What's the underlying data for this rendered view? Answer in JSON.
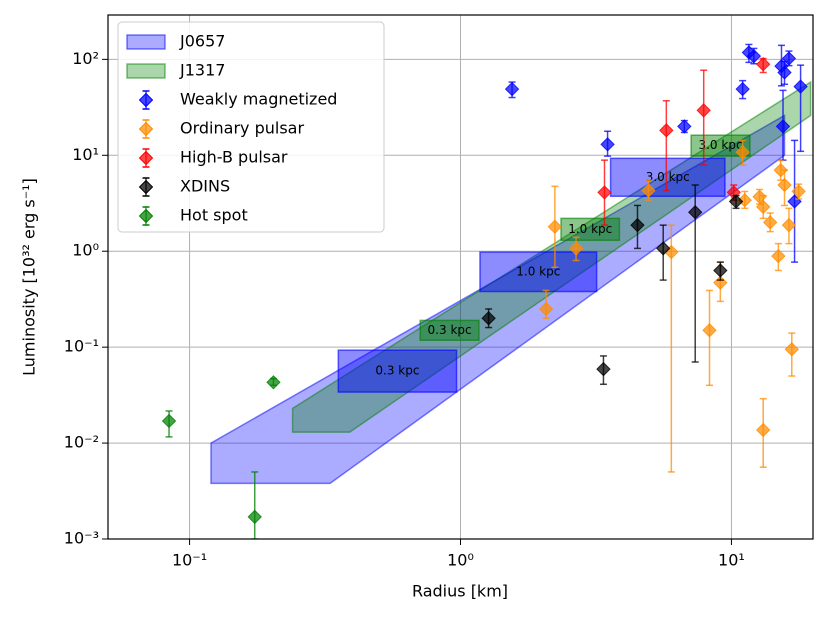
{
  "chart_data": {
    "type": "scatter",
    "xlabel": "Radius [km]",
    "ylabel": "Luminosity [10³² erg s⁻¹]",
    "xscale": "log",
    "yscale": "log",
    "xlim": [
      0.05,
      20
    ],
    "ylim": [
      0.001,
      290
    ],
    "xticks": [
      {
        "value": 0.1,
        "label": "10⁻¹"
      },
      {
        "value": 1,
        "label": "10⁰"
      },
      {
        "value": 10,
        "label": "10¹"
      }
    ],
    "yticks": [
      {
        "value": 0.001,
        "label": "10⁻³"
      },
      {
        "value": 0.01,
        "label": "10⁻²"
      },
      {
        "value": 0.1,
        "label": "10⁻¹"
      },
      {
        "value": 1,
        "label": "10⁰"
      },
      {
        "value": 10,
        "label": "10¹"
      },
      {
        "value": 100,
        "label": "10²"
      }
    ],
    "grid": true,
    "legend": "upper left",
    "regions": [
      {
        "name": "J0657",
        "color": "#0000ff",
        "x": [
          0.12,
          0.12,
          15.7,
          15.7,
          0.33
        ],
        "y": [
          0.0038,
          0.01,
          26,
          10,
          0.0038
        ],
        "boxes": [
          {
            "label": "0.3 kpc",
            "x": [
              0.354,
              0.967
            ],
            "y": [
              0.034,
              0.093
            ]
          },
          {
            "label": "1.0 kpc",
            "x": [
              1.18,
              3.18
            ],
            "y": [
              0.38,
              0.98
            ]
          },
          {
            "label": "3.0 kpc",
            "x": [
              3.58,
              9.46
            ],
            "y": [
              3.74,
              9.3
            ]
          }
        ]
      },
      {
        "name": "J1317",
        "color": "#008000",
        "x": [
          0.24,
          0.24,
          19.6,
          19.6,
          0.39
        ],
        "y": [
          0.013,
          0.023,
          58,
          26,
          0.013
        ],
        "boxes": [
          {
            "label": "0.3 kpc",
            "x": [
              0.71,
              1.17
            ],
            "y": [
              0.118,
              0.19
            ]
          },
          {
            "label": "1.0 kpc",
            "x": [
              2.35,
              3.86
            ],
            "y": [
              1.3,
              2.2
            ]
          },
          {
            "label": "3.0 kpc",
            "x": [
              7.1,
              11.7
            ],
            "y": [
              9.8,
              16.2
            ]
          }
        ]
      }
    ],
    "series": [
      {
        "name": "Weakly magnetized",
        "color": "#0000ff",
        "x": [
          1.55,
          3.49,
          6.7,
          11,
          11.6,
          12.1,
          15.3,
          15.7,
          16.3,
          15.5,
          17.1,
          18
        ],
        "y": [
          49,
          13,
          20,
          49,
          118,
          108,
          85,
          73,
          102,
          20,
          3.3,
          52
        ],
        "ylo": [
          40,
          9.8,
          17.3,
          39,
          93,
          90,
          53,
          55,
          86,
          8.9,
          0.77,
          11
        ],
        "yhi": [
          58,
          17.8,
          23,
          60,
          143,
          130,
          140,
          95,
          122,
          47.5,
          14.3,
          87
        ]
      },
      {
        "name": "Ordinary pulsar",
        "color": "#ff8c00",
        "x": [
          2.23,
          2.07,
          2.67,
          4.94,
          6.0,
          9.1,
          8.3,
          11,
          11.2,
          13.1,
          13.9,
          13.1,
          14.9,
          15.2,
          15.7,
          16.3,
          16.7,
          17.7,
          12.7
        ],
        "y": [
          1.8,
          0.25,
          1.07,
          4.3,
          0.98,
          0.47,
          0.15,
          10.8,
          3.4,
          2.9,
          2.0,
          0.0137,
          0.89,
          7,
          4.9,
          1.87,
          0.095,
          4.2,
          3.7
        ],
        "ylo": [
          0.68,
          0.2,
          0.8,
          3.4,
          0.005,
          0.3,
          0.04,
          7.9,
          2.8,
          2.2,
          1.6,
          0.0056,
          0.63,
          5.5,
          3,
          1.2,
          0.05,
          3.5,
          3.1
        ],
        "yhi": [
          4.75,
          0.39,
          1.4,
          5.5,
          1.87,
          0.77,
          0.39,
          14.3,
          4.2,
          3.8,
          2.5,
          0.029,
          1.2,
          8.8,
          7,
          2.8,
          0.14,
          5,
          4.4
        ]
      },
      {
        "name": "High-B pulsar",
        "color": "#ff0000",
        "x": [
          3.4,
          5.75,
          7.9,
          10.2,
          13.1
        ],
        "y": [
          4.1,
          18.2,
          29.4,
          4.1,
          89
        ],
        "ylo": [
          1.87,
          4.3,
          7.9,
          3.4,
          73
        ],
        "yhi": [
          8.9,
          37,
          77,
          4.9,
          102
        ]
      },
      {
        "name": "XDINS",
        "color": "#000000",
        "x": [
          1.27,
          3.37,
          4.5,
          5.6,
          7.35,
          9.1,
          10.4
        ],
        "y": [
          0.2,
          0.059,
          1.87,
          1.07,
          2.55,
          0.63,
          3.3
        ],
        "ylo": [
          0.16,
          0.041,
          1.07,
          0.5,
          0.07,
          0.5,
          2.8
        ],
        "yhi": [
          0.25,
          0.081,
          3.0,
          1.87,
          4.9,
          0.77,
          3.8
        ]
      },
      {
        "name": "Hot spot",
        "color": "#008000",
        "x": [
          0.084,
          0.204,
          0.174
        ],
        "y": [
          0.017,
          0.043,
          0.0017
        ],
        "ylo": [
          0.0116,
          0.04,
          0.001
        ],
        "yhi": [
          0.0216,
          0.047,
          0.005
        ]
      }
    ]
  }
}
